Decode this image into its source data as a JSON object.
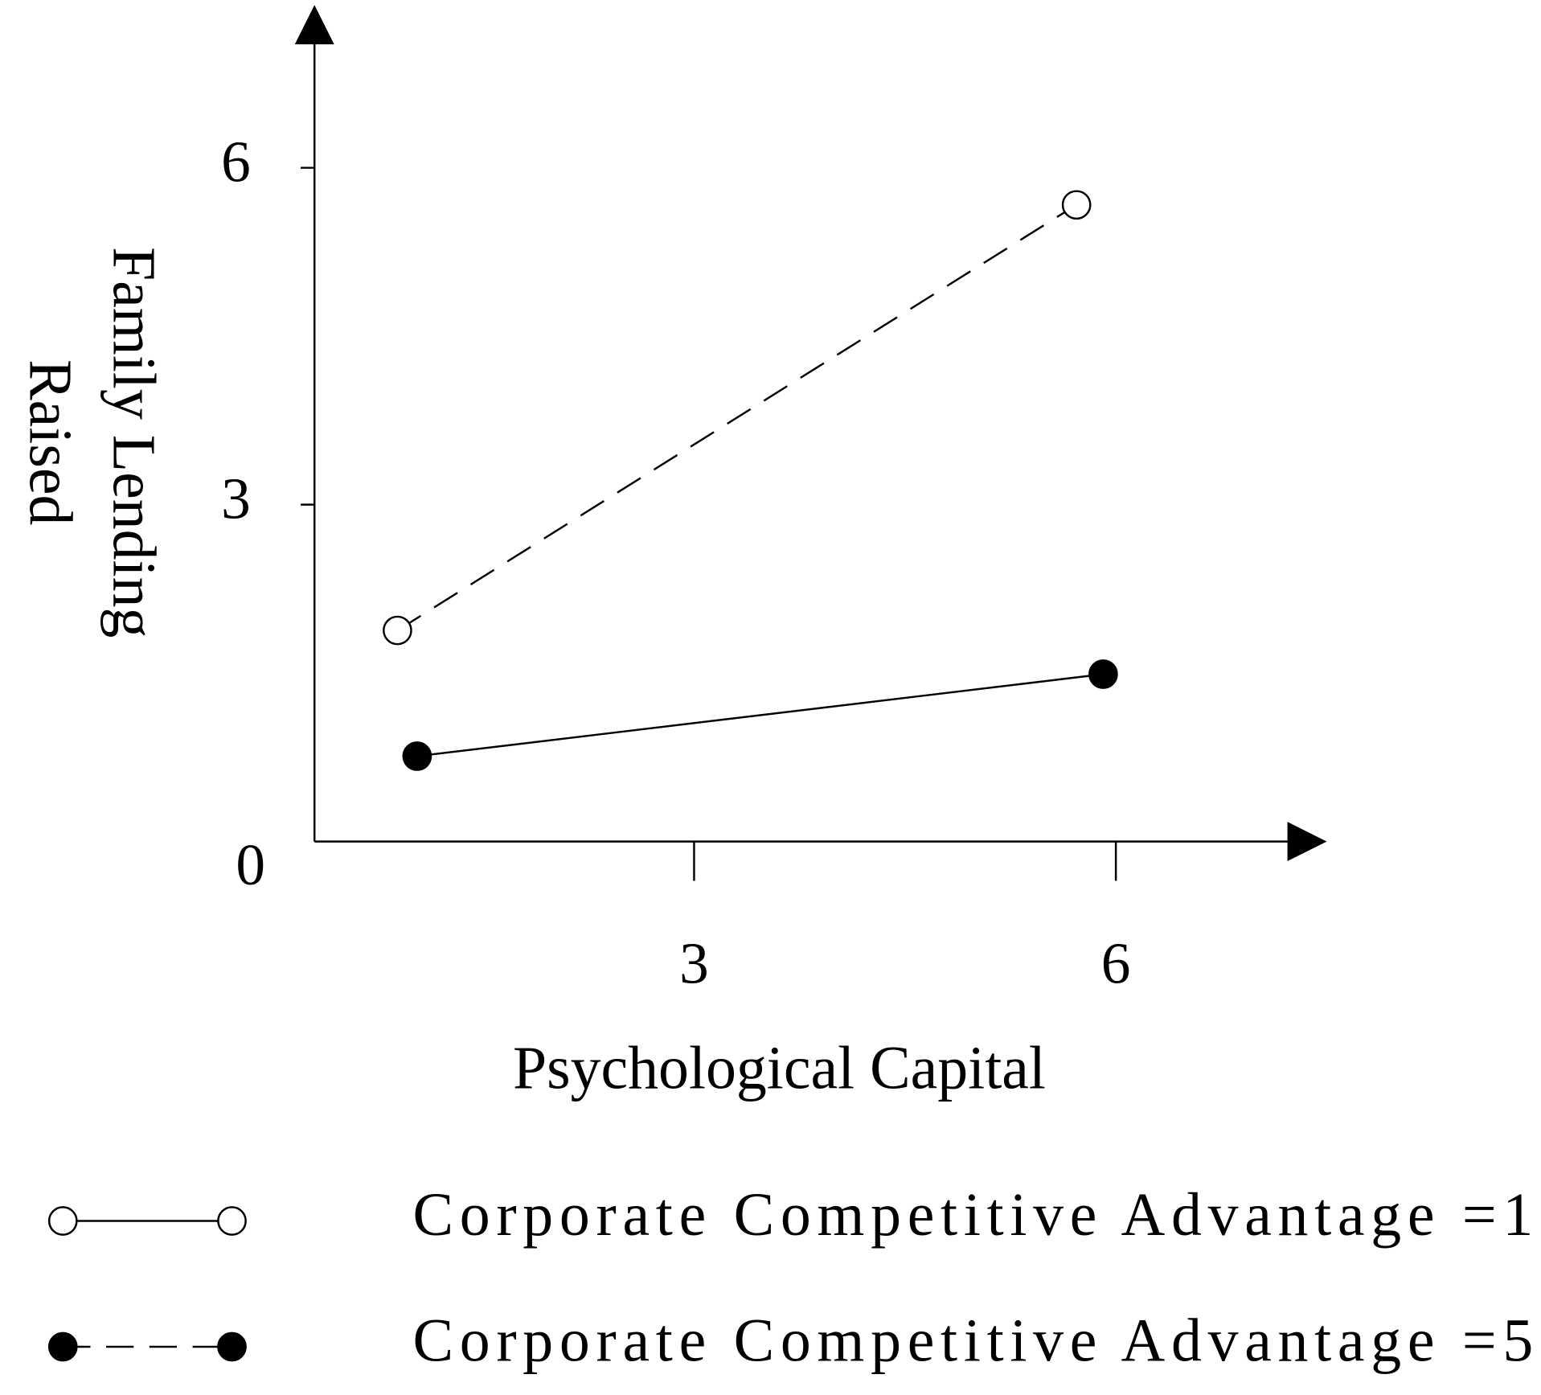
{
  "chart_data": {
    "type": "line",
    "xlabel": "Psychological Capital",
    "ylabel": [
      "Family Lending",
      "Raised"
    ],
    "xlim": [
      0.3,
      7.5
    ],
    "xticks": [
      3,
      6
    ],
    "ylim": [
      0,
      7.45
    ],
    "yticks": [
      0,
      3,
      6
    ],
    "series": [
      {
        "name": "Corporate Competitive Advantage =1",
        "color": "#000000",
        "marker": "open",
        "line_style": "dashed",
        "legend_line_style": "solid",
        "x": [
          0.89,
          5.72
        ],
        "values": [
          1.88,
          5.67
        ]
      },
      {
        "name": "Corporate Competitive Advantage =5",
        "color": "#000000",
        "marker": "filled",
        "line_style": "solid",
        "legend_line_style": "dashed",
        "x": [
          1.03,
          5.91
        ],
        "values": [
          0.76,
          1.49
        ]
      }
    ]
  }
}
